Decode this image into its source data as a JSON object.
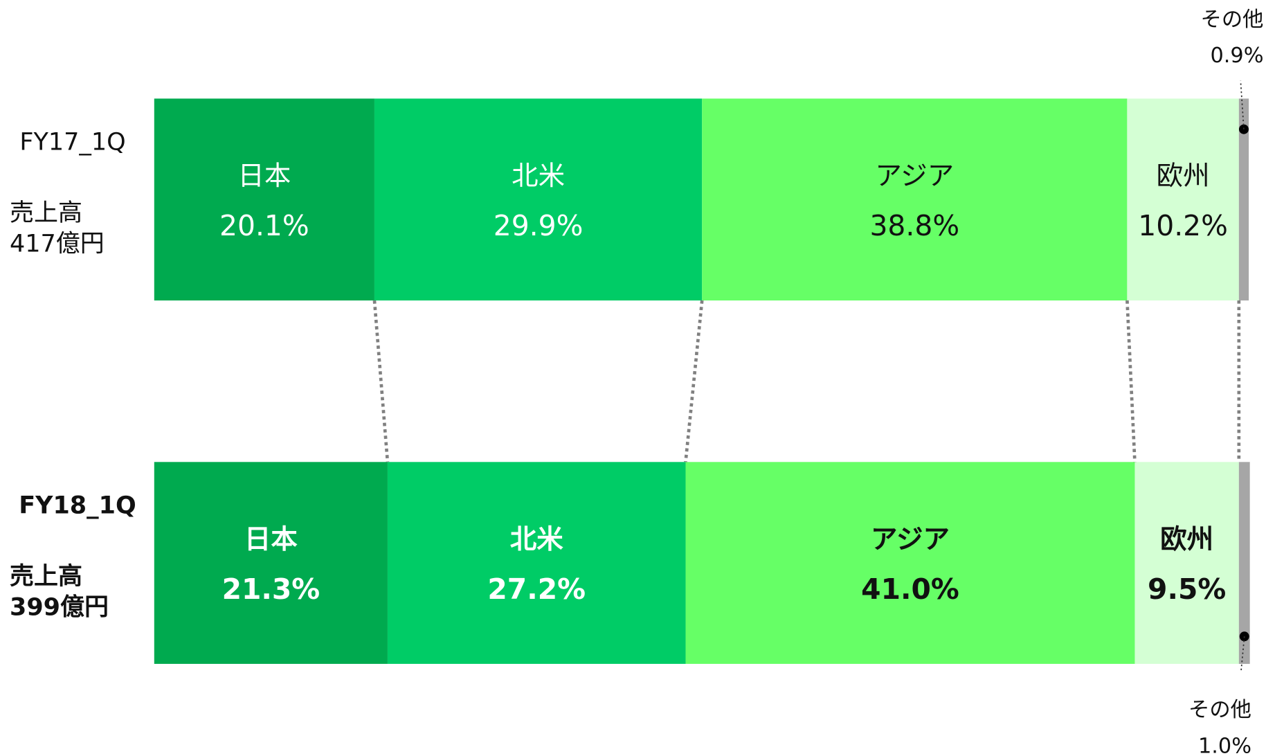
{
  "chart_data": {
    "type": "stacked-bar-100",
    "categories": [
      "FY17_1Q",
      "FY18_1Q"
    ],
    "category_subtitles": [
      [
        "売上高",
        "417億円"
      ],
      [
        "売上高",
        "399億円"
      ]
    ],
    "label_weights": [
      "normal",
      "bold"
    ],
    "xlim": [
      0,
      100
    ],
    "series": [
      {
        "name": "日本",
        "color": "#00aa4f",
        "label_color": "#ffffff",
        "values": [
          20.1,
          21.3
        ],
        "value_labels": [
          "20.1%",
          "21.3%"
        ]
      },
      {
        "name": "北米",
        "color": "#00cc66",
        "label_color": "#ffffff",
        "values": [
          29.9,
          27.2
        ],
        "value_labels": [
          "29.9%",
          "27.2%"
        ]
      },
      {
        "name": "アジア",
        "color": "#66ff66",
        "label_color": "#111111",
        "values": [
          38.8,
          41.0
        ],
        "value_labels": [
          "38.8%",
          "41.0%"
        ]
      },
      {
        "name": "欧州",
        "color": "#d4ffd4",
        "label_color": "#111111",
        "values": [
          10.2,
          9.5
        ],
        "value_labels": [
          "10.2%",
          "9.5%"
        ]
      },
      {
        "name": "その他",
        "color": "#a6a6a6",
        "label_color": "#111111",
        "values": [
          0.9,
          1.0
        ],
        "value_labels": [
          "0.9%",
          "1.0%"
        ],
        "outside": true
      }
    ]
  }
}
